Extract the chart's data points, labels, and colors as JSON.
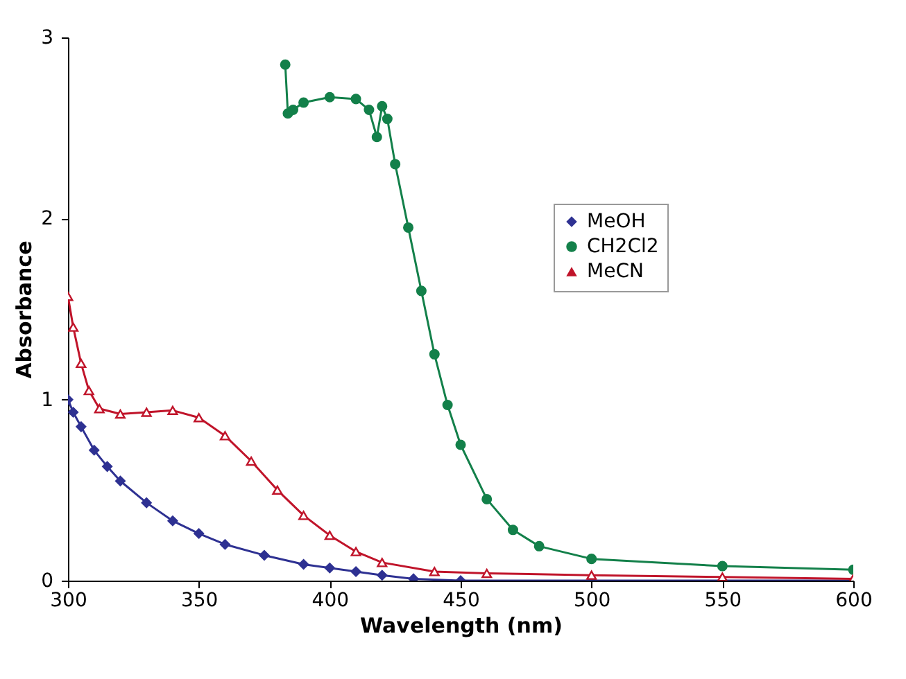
{
  "chart_data": {
    "type": "line",
    "xlabel": "Wavelength (nm)",
    "ylabel": "Absorbance",
    "xlim": [
      300,
      600
    ],
    "xticks": [
      300,
      350,
      400,
      450,
      500,
      550,
      600
    ],
    "ylim": [
      0,
      3
    ],
    "yticks": [
      0,
      1,
      2,
      3
    ],
    "grid": false,
    "legend": "right",
    "series": [
      {
        "name": "MeOH",
        "color": "#2e3192",
        "marker": "diamond",
        "x": [
          300,
          302,
          305,
          310,
          315,
          320,
          330,
          340,
          350,
          360,
          375,
          390,
          400,
          410,
          420,
          432,
          450,
          500,
          550,
          600
        ],
        "values": [
          1.0,
          0.93,
          0.85,
          0.72,
          0.63,
          0.55,
          0.43,
          0.33,
          0.26,
          0.2,
          0.14,
          0.09,
          0.07,
          0.05,
          0.03,
          0.01,
          0.0,
          0.0,
          0.0,
          0.0
        ]
      },
      {
        "name": "CH2Cl2",
        "color": "#13804a",
        "marker": "circle",
        "x": [
          383,
          384,
          386,
          390,
          400,
          410,
          415,
          418,
          420,
          422,
          425,
          430,
          435,
          440,
          445,
          450,
          460,
          470,
          480,
          500,
          550,
          600
        ],
        "values": [
          2.85,
          2.58,
          2.6,
          2.64,
          2.67,
          2.66,
          2.6,
          2.45,
          2.62,
          2.55,
          2.3,
          1.95,
          1.6,
          1.25,
          0.97,
          0.75,
          0.45,
          0.28,
          0.19,
          0.12,
          0.08,
          0.06
        ]
      },
      {
        "name": "MeCN",
        "color": "#c0142a",
        "marker": "triangle",
        "x": [
          300,
          302,
          305,
          308,
          312,
          320,
          330,
          340,
          350,
          360,
          370,
          380,
          390,
          400,
          410,
          420,
          440,
          460,
          500,
          550,
          600
        ],
        "values": [
          1.57,
          1.4,
          1.2,
          1.05,
          0.95,
          0.92,
          0.93,
          0.94,
          0.9,
          0.8,
          0.66,
          0.5,
          0.36,
          0.25,
          0.16,
          0.1,
          0.05,
          0.04,
          0.03,
          0.02,
          0.01
        ]
      }
    ]
  }
}
